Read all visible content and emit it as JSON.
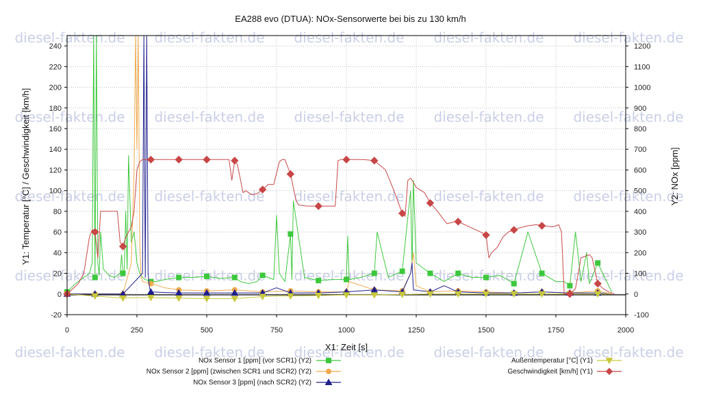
{
  "watermark": "diesel-fakten.de",
  "chart_data": {
    "type": "line",
    "title": "EA288 evo (DTUA): NOx-Sensorwerte bei bis zu 130 km/h",
    "xlabel": "X1: Zeit [s]",
    "ylabel": "Y1: Temperatur [°C] / Geschwindigkeit [km/h]",
    "y2label": "Y2: NOx [ppm]",
    "xlim": [
      0,
      2000
    ],
    "ylim": [
      -20,
      250
    ],
    "y2lim": [
      -100,
      1250
    ],
    "xticks": [
      "0",
      "250",
      "500",
      "750",
      "1000",
      "1250",
      "1500",
      "1750",
      "2000"
    ],
    "yticks": [
      "-20",
      "0",
      "20",
      "40",
      "60",
      "80",
      "100",
      "120",
      "140",
      "160",
      "180",
      "200",
      "220",
      "240"
    ],
    "y2ticks": [
      "-100",
      "0",
      "100",
      "200",
      "300",
      "400",
      "500",
      "600",
      "700",
      "800",
      "900",
      "1000",
      "1100",
      "1200"
    ],
    "grid": true,
    "legend_position": "bottom",
    "series": [
      {
        "name": "NOx Sensor 1 [ppm] (vor SCR1) (Y2)",
        "axis": "y2",
        "color": "#3cc83c",
        "marker": "square",
        "x": [
          0,
          30,
          60,
          80,
          90,
          95,
          100,
          105,
          110,
          115,
          120,
          130,
          150,
          170,
          190,
          195,
          200,
          205,
          210,
          215,
          220,
          230,
          240,
          250,
          260,
          270,
          280,
          300,
          320,
          350,
          400,
          450,
          500,
          550,
          600,
          620,
          650,
          680,
          700,
          740,
          750,
          760,
          780,
          800,
          805,
          810,
          850,
          900,
          950,
          1000,
          1005,
          1010,
          1050,
          1100,
          1110,
          1150,
          1200,
          1230,
          1235,
          1240,
          1250,
          1300,
          1350,
          1400,
          1450,
          1500,
          1550,
          1600,
          1650,
          1700,
          1750,
          1780,
          1800,
          1820,
          1840,
          1860,
          1870,
          1900,
          1950
        ],
        "y": [
          10,
          50,
          80,
          100,
          150,
          1250,
          80,
          1250,
          150,
          90,
          300,
          120,
          90,
          80,
          100,
          190,
          100,
          120,
          400,
          120,
          670,
          250,
          300,
          150,
          100,
          80,
          70,
          60,
          60,
          70,
          80,
          80,
          85,
          75,
          80,
          60,
          50,
          60,
          90,
          70,
          380,
          100,
          60,
          290,
          70,
          450,
          80,
          65,
          70,
          70,
          280,
          70,
          80,
          100,
          300,
          80,
          110,
          500,
          130,
          550,
          150,
          100,
          60,
          100,
          80,
          80,
          90,
          50,
          300,
          100,
          60,
          60,
          40,
          300,
          60,
          200,
          50,
          150,
          10
        ]
      },
      {
        "name": "NOx Sensor 2 [ppm] (zwischen SCR1 und SCR2) (Y2)",
        "axis": "y2",
        "color": "#f0a94c",
        "marker": "circle",
        "x": [
          0,
          100,
          200,
          230,
          240,
          245,
          250,
          255,
          260,
          265,
          270,
          300,
          350,
          400,
          500,
          600,
          700,
          800,
          900,
          1000,
          1010,
          1100,
          1200,
          1230,
          1240,
          1250,
          1300,
          1400,
          1500,
          1600,
          1700,
          1800,
          1900,
          1950
        ],
        "y": [
          0,
          0,
          0,
          150,
          600,
          1250,
          700,
          1250,
          250,
          80,
          60,
          50,
          30,
          20,
          15,
          20,
          10,
          15,
          10,
          10,
          60,
          20,
          15,
          100,
          200,
          40,
          10,
          15,
          10,
          5,
          10,
          5,
          15,
          0
        ]
      },
      {
        "name": "NOx Sensor 3 [ppm] (nach SCR2) (Y2)",
        "axis": "y2",
        "color": "#1e1e8c",
        "marker": "triangle",
        "x": [
          0,
          100,
          200,
          270,
          275,
          280,
          285,
          290,
          295,
          300,
          400,
          500,
          600,
          700,
          750,
          800,
          900,
          1000,
          1100,
          1200,
          1230,
          1235,
          1240,
          1300,
          1350,
          1400,
          1500,
          1600,
          1700,
          1800,
          1900,
          1950
        ],
        "y": [
          0,
          0,
          0,
          100,
          1250,
          80,
          1250,
          100,
          30,
          10,
          5,
          5,
          5,
          5,
          30,
          5,
          5,
          10,
          20,
          10,
          100,
          150,
          20,
          10,
          40,
          10,
          5,
          5,
          10,
          5,
          5,
          0
        ]
      },
      {
        "name": "Außentemperatur [°C] (Y1)",
        "axis": "y1",
        "color": "#c8c83c",
        "marker": "triangle-down",
        "x": [
          0,
          50,
          100,
          150,
          200,
          250,
          300,
          400,
          500,
          600,
          650,
          700,
          750,
          800,
          900,
          1000,
          1100,
          1200,
          1300,
          1400,
          1500,
          1600,
          1700,
          1800,
          1900,
          1950
        ],
        "y": [
          0,
          -1,
          -2,
          -3,
          -4,
          -3.5,
          -3.5,
          -4,
          -4.5,
          -4.5,
          -3.5,
          -2.5,
          -2,
          -2,
          -1.5,
          -1,
          -1,
          -0.5,
          0,
          0,
          0,
          0,
          0,
          0,
          0,
          0
        ]
      },
      {
        "name": "Geschwindigkeit [km/h] (Y1)",
        "axis": "y1",
        "color": "#c84646",
        "marker": "diamond",
        "x": [
          0,
          20,
          40,
          60,
          80,
          90,
          100,
          110,
          120,
          180,
          190,
          200,
          210,
          220,
          230,
          240,
          250,
          260,
          270,
          280,
          300,
          400,
          500,
          580,
          590,
          600,
          610,
          630,
          640,
          660,
          680,
          700,
          720,
          740,
          760,
          770,
          780,
          800,
          820,
          830,
          860,
          900,
          960,
          970,
          980,
          1000,
          1060,
          1100,
          1140,
          1170,
          1200,
          1210,
          1220,
          1230,
          1240,
          1250,
          1280,
          1300,
          1320,
          1340,
          1360,
          1390,
          1400,
          1440,
          1480,
          1500,
          1510,
          1520,
          1540,
          1560,
          1580,
          1600,
          1620,
          1650,
          1680,
          1700,
          1740,
          1760,
          1770,
          1780,
          1800,
          1820,
          1840,
          1860,
          1870,
          1880,
          1900,
          1920,
          1940,
          1960
        ],
        "y": [
          0,
          5,
          10,
          20,
          55,
          62,
          60,
          35,
          80,
          80,
          50,
          46,
          55,
          60,
          65,
          80,
          120,
          128,
          130,
          130,
          130,
          130,
          130,
          130,
          110,
          129,
          125,
          98,
          100,
          96,
          97,
          101,
          106,
          106,
          128,
          130,
          130,
          116,
          90,
          86,
          85,
          85,
          85,
          129,
          130,
          130,
          130,
          129,
          120,
          100,
          78,
          75,
          110,
          112,
          108,
          103,
          98,
          88,
          82,
          75,
          68,
          70,
          70,
          65,
          60,
          57,
          35,
          40,
          45,
          55,
          60,
          62,
          64,
          66,
          67,
          66,
          65,
          67,
          60,
          0,
          0,
          5,
          35,
          37,
          38,
          35,
          10,
          5,
          2,
          0
        ]
      }
    ]
  }
}
